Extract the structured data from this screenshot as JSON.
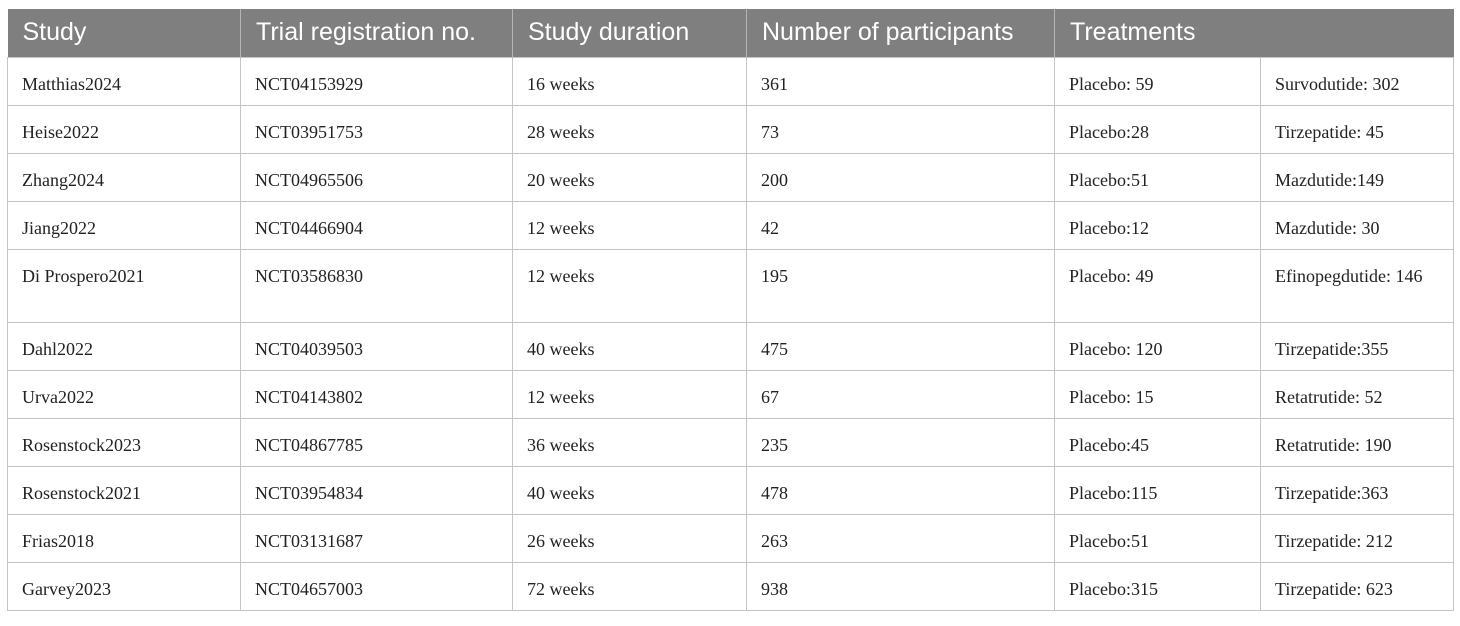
{
  "table": {
    "headers": [
      "Study",
      "Trial registration no.",
      "Study duration",
      "Number of participants",
      "Treatments"
    ],
    "rows": [
      [
        "Matthias2024",
        "NCT04153929",
        "16 weeks",
        "361",
        "Placebo: 59",
        "Survodutide: 302"
      ],
      [
        "Heise2022",
        "NCT03951753",
        "28 weeks",
        "73",
        "Placebo:28",
        "Tirzepatide: 45"
      ],
      [
        "Zhang2024",
        "NCT04965506",
        "20 weeks",
        "200",
        "Placebo:51",
        "Mazdutide:149"
      ],
      [
        "Jiang2022",
        "NCT04466904",
        "12 weeks",
        "42",
        "Placebo:12",
        "Mazdutide: 30"
      ],
      [
        "Di Prospero2021",
        "NCT03586830",
        "12 weeks",
        "195",
        "Placebo: 49",
        "Efinopegdutide: 146"
      ],
      [
        "Dahl2022",
        "NCT04039503",
        "40 weeks",
        "475",
        "Placebo: 120",
        "Tirzepatide:355"
      ],
      [
        "Urva2022",
        "NCT04143802",
        "12 weeks",
        "67",
        "Placebo: 15",
        "Retatrutide: 52"
      ],
      [
        "Rosenstock2023",
        "NCT04867785",
        "36 weeks",
        "235",
        "Placebo:45",
        "Retatrutide: 190"
      ],
      [
        "Rosenstock2021",
        "NCT03954834",
        "40 weeks",
        "478",
        "Placebo:115",
        "Tirzepatide:363"
      ],
      [
        "Frias2018",
        "NCT03131687",
        "26 weeks",
        "263",
        "Placebo:51",
        "Tirzepatide: 212"
      ],
      [
        "Garvey2023",
        "NCT04657003",
        "72 weeks",
        "938",
        "Placebo:315",
        "Tirzepatide: 623"
      ]
    ]
  }
}
